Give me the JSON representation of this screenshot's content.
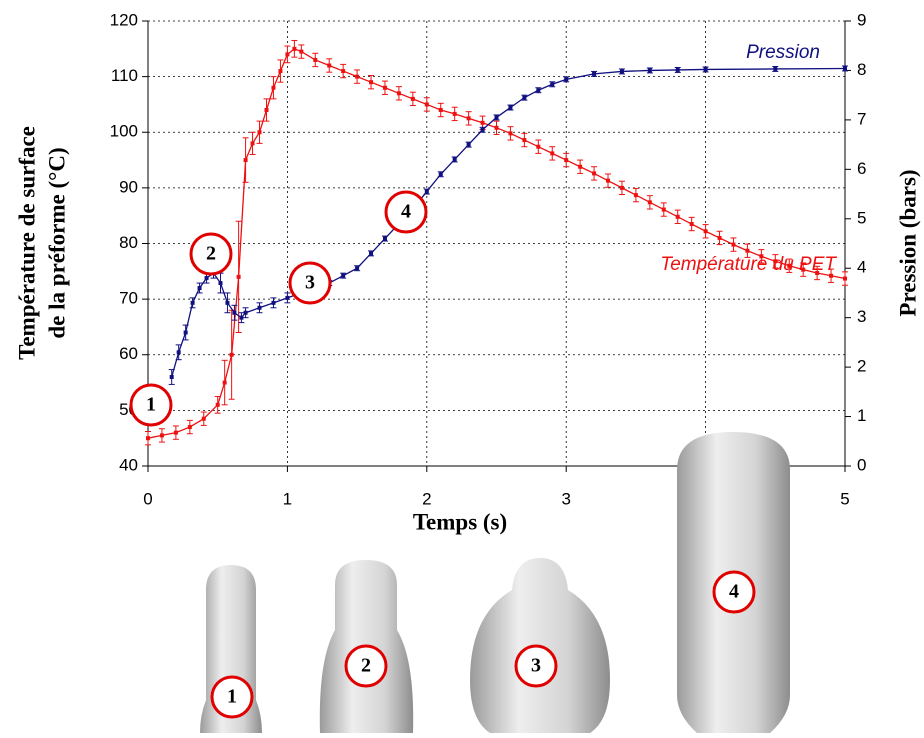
{
  "chart_data": {
    "type": "line",
    "y_label_lines": [
      "Température de surface",
      "de la préforme (°C)"
    ],
    "y2_label": "Pression (bars)",
    "x_label": "Temps (s)",
    "xlim": [
      0,
      5
    ],
    "xticks": [
      0,
      1,
      2,
      3,
      4,
      5
    ],
    "ylim": [
      40,
      120
    ],
    "yticks": [
      40,
      50,
      60,
      70,
      80,
      90,
      100,
      110,
      120
    ],
    "y2lim": [
      0,
      9
    ],
    "y2ticks": [
      0,
      1,
      2,
      3,
      4,
      5,
      6,
      7,
      8,
      9
    ],
    "grid": true,
    "series": [
      {
        "name": "Température du PET",
        "color": "#ee1111",
        "axis": "y",
        "x": [
          0,
          0.1,
          0.2,
          0.3,
          0.4,
          0.5,
          0.55,
          0.6,
          0.65,
          0.7,
          0.75,
          0.8,
          0.85,
          0.9,
          0.95,
          1.0,
          1.05,
          1.1,
          1.2,
          1.3,
          1.4,
          1.5,
          1.6,
          1.7,
          1.8,
          1.9,
          2.0,
          2.1,
          2.2,
          2.3,
          2.4,
          2.5,
          2.6,
          2.7,
          2.8,
          2.9,
          3.0,
          3.1,
          3.2,
          3.3,
          3.4,
          3.5,
          3.6,
          3.7,
          3.8,
          3.9,
          4.0,
          4.1,
          4.2,
          4.3,
          4.4,
          4.5,
          4.6,
          4.7,
          4.8,
          4.9,
          5.0
        ],
        "values": [
          45,
          45.5,
          46,
          47,
          48.5,
          51,
          55,
          60,
          74,
          95,
          98,
          100,
          104,
          108,
          111,
          114,
          115,
          114.5,
          113,
          112,
          111,
          110,
          109,
          108,
          107,
          106,
          105,
          104,
          103.3,
          102.5,
          101.7,
          100.8,
          99.8,
          98.6,
          97.4,
          96.2,
          95,
          93.8,
          92.6,
          91.3,
          90,
          88.7,
          87.4,
          86.1,
          84.8,
          83.5,
          82.2,
          81,
          79.8,
          78.7,
          77.7,
          76.8,
          76,
          75.3,
          74.7,
          74.2,
          73.7
        ],
        "errors": [
          1.2,
          1.2,
          1.2,
          1.2,
          1.2,
          1.5,
          4,
          8,
          10,
          4,
          2,
          2,
          2,
          2,
          2,
          1.5,
          1.5,
          1.2,
          1.2,
          1.2,
          1.2,
          1.2,
          1.2,
          1.2,
          1.2,
          1.2,
          1.2,
          1.2,
          1.2,
          1.2,
          1.2,
          1.2,
          1.2,
          1.2,
          1.2,
          1.2,
          1.2,
          1.2,
          1.2,
          1.2,
          1.2,
          1.2,
          1.2,
          1.2,
          1.2,
          1.2,
          1.2,
          1.2,
          1.2,
          1.2,
          1.2,
          1.2,
          1.2,
          1.2,
          1.2,
          1.2,
          1.2
        ]
      },
      {
        "name": "Pression",
        "color": "#101080",
        "axis": "y2",
        "x": [
          0.17,
          0.22,
          0.27,
          0.32,
          0.37,
          0.42,
          0.47,
          0.52,
          0.57,
          0.62,
          0.67,
          0.7,
          0.8,
          0.9,
          1.0,
          1.1,
          1.2,
          1.3,
          1.4,
          1.5,
          1.6,
          1.7,
          1.8,
          1.9,
          2.0,
          2.1,
          2.2,
          2.3,
          2.4,
          2.5,
          2.6,
          2.7,
          2.8,
          2.9,
          3.0,
          3.2,
          3.4,
          3.6,
          3.8,
          4.0,
          4.5,
          5.0
        ],
        "values": [
          1.8,
          2.3,
          2.7,
          3.3,
          3.6,
          3.8,
          3.9,
          3.7,
          3.3,
          3.1,
          3.0,
          3.1,
          3.2,
          3.3,
          3.4,
          3.5,
          3.6,
          3.7,
          3.85,
          4.0,
          4.3,
          4.6,
          4.9,
          5.2,
          5.55,
          5.9,
          6.2,
          6.5,
          6.8,
          7.05,
          7.25,
          7.45,
          7.6,
          7.72,
          7.82,
          7.93,
          7.98,
          8.0,
          8.01,
          8.02,
          8.03,
          8.04
        ],
        "errors": [
          0.15,
          0.15,
          0.15,
          0.1,
          0.1,
          0.1,
          0.1,
          0.2,
          0.2,
          0.15,
          0.1,
          0.1,
          0.1,
          0.1,
          0.1,
          0.05,
          0.05,
          0.05,
          0.05,
          0.05,
          0.05,
          0.05,
          0.05,
          0.05,
          0.05,
          0.05,
          0.05,
          0.05,
          0.05,
          0.05,
          0.05,
          0.05,
          0.05,
          0.05,
          0.05,
          0.05,
          0.05,
          0.05,
          0.05,
          0.05,
          0.05,
          0.05
        ]
      }
    ],
    "markers": [
      "1",
      "2",
      "3",
      "4"
    ],
    "shape_labels": [
      "1",
      "2",
      "3",
      "4"
    ]
  }
}
